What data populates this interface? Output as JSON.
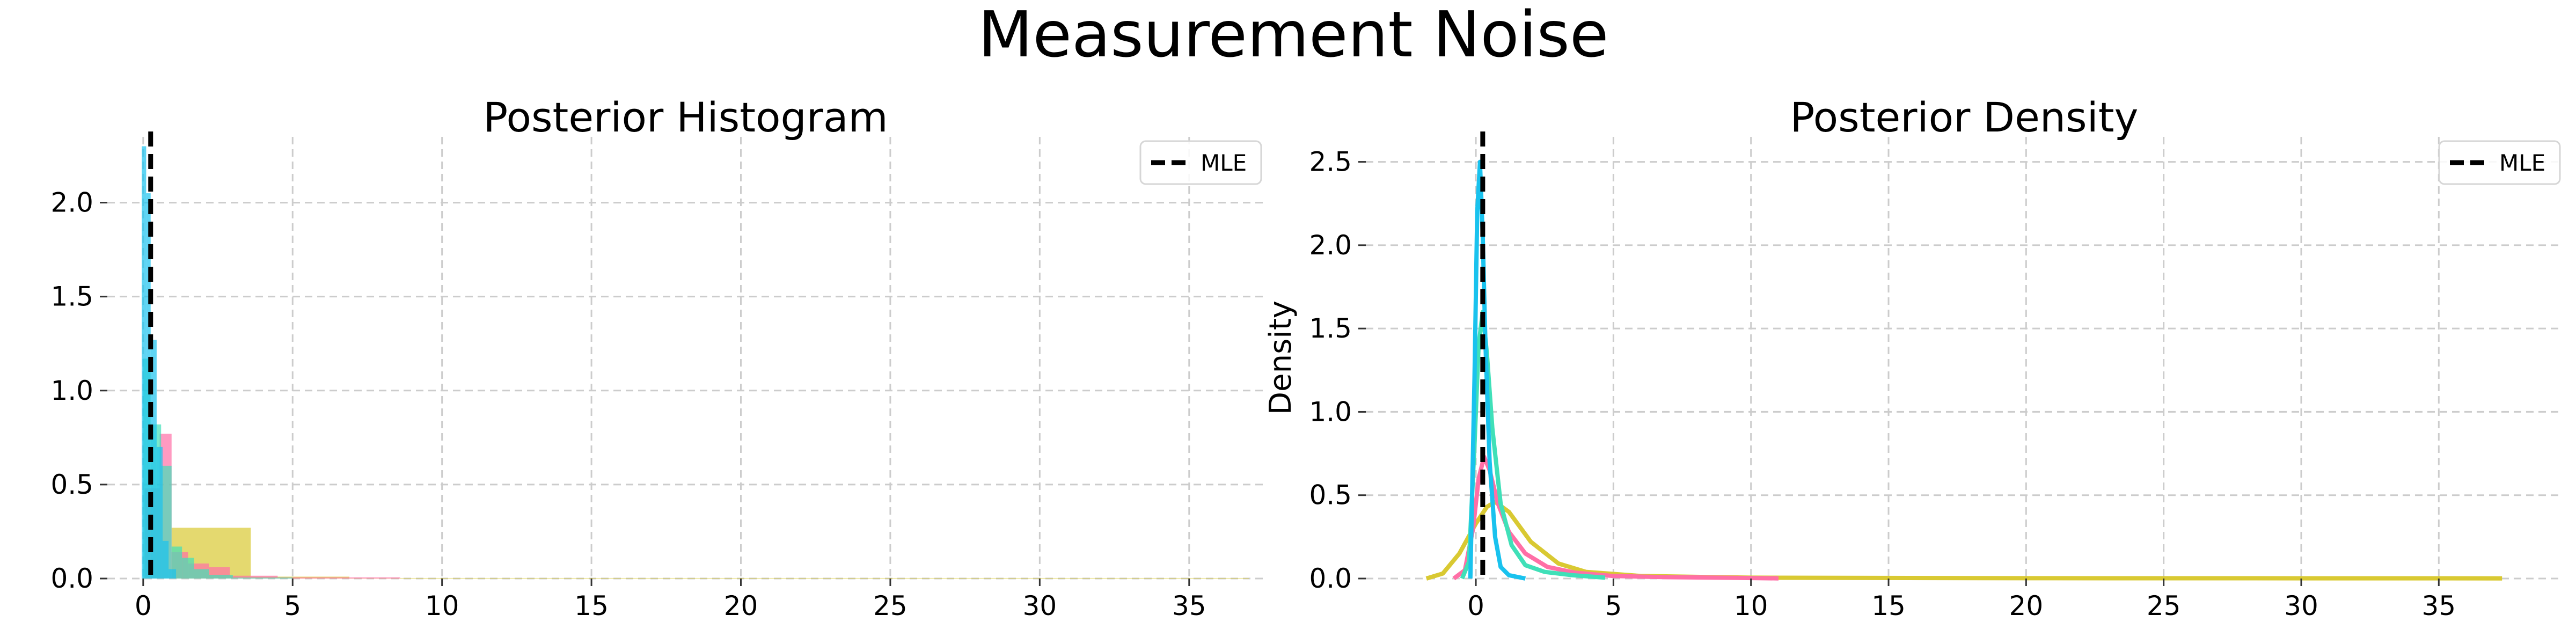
{
  "figure": {
    "suptitle": "Measurement Noise"
  },
  "colors": {
    "yellow": "#d9c932",
    "pink": "#ff6fa6",
    "teal": "#40e0b8",
    "cyan": "#19c2ee",
    "mle": "#000000",
    "grid": "#cccccc"
  },
  "chart_data": [
    {
      "type": "bar",
      "title": "Posterior Histogram",
      "xlabel": "",
      "ylabel": "",
      "xlim": [
        -1.2,
        37.5
      ],
      "ylim": [
        0,
        2.35
      ],
      "xticks": [
        0,
        5,
        10,
        15,
        20,
        25,
        30,
        35
      ],
      "xtick_labels": [
        "0",
        "5",
        "10",
        "15",
        "20",
        "25",
        "30",
        "35"
      ],
      "yticks": [
        0.0,
        0.5,
        1.0,
        1.5,
        2.0
      ],
      "ytick_labels": [
        "0.0",
        "0.5",
        "1.0",
        "1.5",
        "2.0"
      ],
      "grid": true,
      "legend": {
        "position": "top-right",
        "entries": [
          {
            "label": "MLE",
            "style": "dashed"
          }
        ]
      },
      "mle_x": 0.25,
      "series": [
        {
          "color": "yellow",
          "bins": [
            [
              0.95,
              3.6,
              0.27
            ],
            [
              3.6,
              6.9,
              0.01
            ],
            [
              6.9,
              37.0,
              0.003
            ]
          ]
        },
        {
          "color": "pink",
          "bins": [
            [
              0.05,
              0.55,
              0.48
            ],
            [
              0.55,
              0.95,
              0.77
            ],
            [
              0.95,
              1.5,
              0.14
            ],
            [
              1.5,
              2.2,
              0.08
            ],
            [
              2.2,
              2.9,
              0.06
            ],
            [
              2.9,
              4.5,
              0.015
            ],
            [
              4.5,
              8.6,
              0.006
            ]
          ]
        },
        {
          "color": "teal",
          "bins": [
            [
              0.0,
              0.25,
              1.17
            ],
            [
              0.25,
              0.6,
              0.82
            ],
            [
              0.6,
              0.95,
              0.6
            ],
            [
              0.95,
              1.3,
              0.17
            ],
            [
              1.3,
              1.7,
              0.11
            ],
            [
              1.7,
              2.2,
              0.05
            ],
            [
              2.2,
              3.0,
              0.02
            ],
            [
              3.0,
              5.0,
              0.005
            ]
          ]
        },
        {
          "color": "cyan",
          "bins": [
            [
              -0.05,
              0.1,
              2.3
            ],
            [
              0.1,
              0.25,
              2.05
            ],
            [
              0.25,
              0.45,
              1.27
            ],
            [
              0.45,
              0.65,
              0.7
            ],
            [
              0.65,
              0.85,
              0.2
            ],
            [
              0.85,
              1.1,
              0.05
            ]
          ]
        }
      ]
    },
    {
      "type": "line",
      "title": "Posterior Density",
      "xlabel": "",
      "ylabel": "Density",
      "xlim": [
        -4.0,
        39.5
      ],
      "ylim": [
        0,
        2.65
      ],
      "xticks": [
        0,
        5,
        10,
        15,
        20,
        25,
        30,
        35
      ],
      "xtick_labels": [
        "0",
        "5",
        "10",
        "15",
        "20",
        "25",
        "30",
        "35"
      ],
      "yticks": [
        0.0,
        0.5,
        1.0,
        1.5,
        2.0,
        2.5
      ],
      "ytick_labels": [
        "0.0",
        "0.5",
        "1.0",
        "1.5",
        "2.0",
        "2.5"
      ],
      "grid": true,
      "legend": {
        "position": "top-right",
        "entries": [
          {
            "label": "MLE",
            "style": "dashed"
          }
        ]
      },
      "mle_x": 0.25,
      "series": [
        {
          "color": "yellow",
          "points": [
            [
              -1.8,
              0.0
            ],
            [
              -1.2,
              0.03
            ],
            [
              -0.6,
              0.15
            ],
            [
              0.0,
              0.33
            ],
            [
              0.4,
              0.43
            ],
            [
              0.7,
              0.46
            ],
            [
              1.2,
              0.4
            ],
            [
              2.0,
              0.22
            ],
            [
              3.0,
              0.09
            ],
            [
              4.0,
              0.04
            ],
            [
              6.0,
              0.015
            ],
            [
              10.0,
              0.005
            ],
            [
              20.0,
              0.002
            ],
            [
              37.3,
              0.001
            ]
          ]
        },
        {
          "color": "pink",
          "points": [
            [
              -0.8,
              0.0
            ],
            [
              -0.4,
              0.05
            ],
            [
              -0.1,
              0.3
            ],
            [
              0.1,
              0.6
            ],
            [
              0.3,
              0.73
            ],
            [
              0.5,
              0.65
            ],
            [
              0.8,
              0.45
            ],
            [
              1.2,
              0.28
            ],
            [
              1.8,
              0.15
            ],
            [
              2.6,
              0.07
            ],
            [
              3.6,
              0.035
            ],
            [
              5.0,
              0.015
            ],
            [
              7.0,
              0.008
            ],
            [
              9.5,
              0.004
            ],
            [
              11.0,
              0.001
            ]
          ]
        },
        {
          "color": "teal",
          "points": [
            [
              -0.5,
              0.0
            ],
            [
              -0.25,
              0.1
            ],
            [
              -0.05,
              0.8
            ],
            [
              0.1,
              1.4
            ],
            [
              0.25,
              1.6
            ],
            [
              0.4,
              1.35
            ],
            [
              0.6,
              0.9
            ],
            [
              0.9,
              0.45
            ],
            [
              1.3,
              0.2
            ],
            [
              1.8,
              0.08
            ],
            [
              2.5,
              0.04
            ],
            [
              3.5,
              0.02
            ],
            [
              4.7,
              0.005
            ]
          ]
        },
        {
          "color": "cyan",
          "points": [
            [
              -0.2,
              0.0
            ],
            [
              -0.05,
              1.2
            ],
            [
              0.05,
              2.2
            ],
            [
              0.15,
              2.5
            ],
            [
              0.25,
              2.05
            ],
            [
              0.35,
              1.4
            ],
            [
              0.5,
              0.7
            ],
            [
              0.7,
              0.25
            ],
            [
              0.9,
              0.07
            ],
            [
              1.2,
              0.02
            ],
            [
              1.8,
              0.0
            ]
          ]
        }
      ]
    }
  ]
}
